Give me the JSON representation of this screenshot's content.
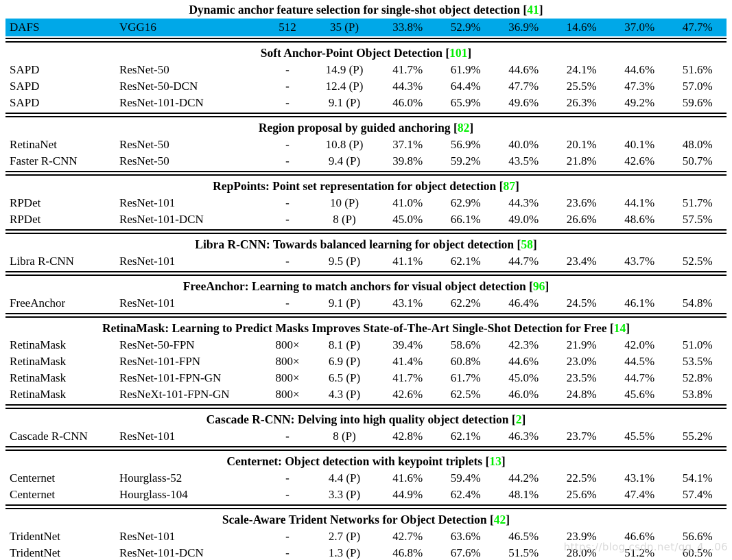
{
  "punct": {
    "open": "[",
    "close": "]"
  },
  "colors": {
    "highlight_row": "#00a8e8",
    "citation_green": "#00ee00",
    "text": "#000000",
    "background": "#ffffff"
  },
  "top_block": {
    "title": "Dynamic anchor feature selection for single-shot object detection",
    "citation": "41",
    "row": {
      "model": "DAFS",
      "backbone": "VGG16",
      "size": "512",
      "fps": "35 (P)",
      "m1": "33.8%",
      "m2": "52.9%",
      "m3": "36.9%",
      "m4": "14.6%",
      "m5": "37.0%",
      "m6": "47.7%"
    }
  },
  "sections": [
    {
      "title": "Soft Anchor-Point Object Detection",
      "citation": "101",
      "rows": [
        {
          "model": "SAPD",
          "backbone": "ResNet-50",
          "size": "-",
          "fps": "14.9 (P)",
          "m1": "41.7%",
          "m2": "61.9%",
          "m3": "44.6%",
          "m4": "24.1%",
          "m5": "44.6%",
          "m6": "51.6%"
        },
        {
          "model": "SAPD",
          "backbone": "ResNet-50-DCN",
          "size": "-",
          "fps": "12.4 (P)",
          "m1": "44.3%",
          "m2": "64.4%",
          "m3": "47.7%",
          "m4": "25.5%",
          "m5": "47.3%",
          "m6": "57.0%"
        },
        {
          "model": "SAPD",
          "backbone": "ResNet-101-DCN",
          "size": "-",
          "fps": "9.1 (P)",
          "m1": "46.0%",
          "m2": "65.9%",
          "m3": "49.6%",
          "m4": "26.3%",
          "m5": "49.2%",
          "m6": "59.6%"
        }
      ]
    },
    {
      "title": "Region proposal by guided anchoring",
      "citation": "82",
      "rows": [
        {
          "model": "RetinaNet",
          "backbone": "ResNet-50",
          "size": "-",
          "fps": "10.8 (P)",
          "m1": "37.1%",
          "m2": "56.9%",
          "m3": "40.0%",
          "m4": "20.1%",
          "m5": "40.1%",
          "m6": "48.0%"
        },
        {
          "model": "Faster R-CNN",
          "backbone": "ResNet-50",
          "size": "-",
          "fps": "9.4 (P)",
          "m1": "39.8%",
          "m2": "59.2%",
          "m3": "43.5%",
          "m4": "21.8%",
          "m5": "42.6%",
          "m6": "50.7%"
        }
      ]
    },
    {
      "title": "RepPoints: Point set representation for object detection",
      "citation": "87",
      "rows": [
        {
          "model": "RPDet",
          "backbone": "ResNet-101",
          "size": "-",
          "fps": "10 (P)",
          "m1": "41.0%",
          "m2": "62.9%",
          "m3": "44.3%",
          "m4": "23.6%",
          "m5": "44.1%",
          "m6": "51.7%"
        },
        {
          "model": "RPDet",
          "backbone": "ResNet-101-DCN",
          "size": "-",
          "fps": "8 (P)",
          "m1": "45.0%",
          "m2": "66.1%",
          "m3": "49.0%",
          "m4": "26.6%",
          "m5": "48.6%",
          "m6": "57.5%"
        }
      ]
    },
    {
      "title": "Libra R-CNN: Towards balanced learning for object detection",
      "citation": "58",
      "rows": [
        {
          "model": "Libra R-CNN",
          "backbone": "ResNet-101",
          "size": "-",
          "fps": "9.5 (P)",
          "m1": "41.1%",
          "m2": "62.1%",
          "m3": "44.7%",
          "m4": "23.4%",
          "m5": "43.7%",
          "m6": "52.5%"
        }
      ]
    },
    {
      "title": "FreeAnchor: Learning to match anchors for visual object detection",
      "citation": "96",
      "rows": [
        {
          "model": "FreeAnchor",
          "backbone": "ResNet-101",
          "size": "-",
          "fps": "9.1 (P)",
          "m1": "43.1%",
          "m2": "62.2%",
          "m3": "46.4%",
          "m4": "24.5%",
          "m5": "46.1%",
          "m6": "54.8%"
        }
      ]
    },
    {
      "title": "RetinaMask: Learning to Predict Masks Improves State-of-The-Art Single-Shot Detection for Free",
      "citation": "14",
      "rows": [
        {
          "model": "RetinaMask",
          "backbone": "ResNet-50-FPN",
          "size": "800×",
          "fps": "8.1 (P)",
          "m1": "39.4%",
          "m2": "58.6%",
          "m3": "42.3%",
          "m4": "21.9%",
          "m5": "42.0%",
          "m6": "51.0%"
        },
        {
          "model": "RetinaMask",
          "backbone": "ResNet-101-FPN",
          "size": "800×",
          "fps": "6.9 (P)",
          "m1": "41.4%",
          "m2": "60.8%",
          "m3": "44.6%",
          "m4": "23.0%",
          "m5": "44.5%",
          "m6": "53.5%"
        },
        {
          "model": "RetinaMask",
          "backbone": "ResNet-101-FPN-GN",
          "size": "800×",
          "fps": "6.5 (P)",
          "m1": "41.7%",
          "m2": "61.7%",
          "m3": "45.0%",
          "m4": "23.5%",
          "m5": "44.7%",
          "m6": "52.8%"
        },
        {
          "model": "RetinaMask",
          "backbone": "ResNeXt-101-FPN-GN",
          "size": "800×",
          "fps": "4.3 (P)",
          "m1": "42.6%",
          "m2": "62.5%",
          "m3": "46.0%",
          "m4": "24.8%",
          "m5": "45.6%",
          "m6": "53.8%"
        }
      ]
    },
    {
      "title": "Cascade R-CNN: Delving into high quality object detection",
      "citation": "2",
      "rows": [
        {
          "model": "Cascade R-CNN",
          "backbone": "ResNet-101",
          "size": "-",
          "fps": "8 (P)",
          "m1": "42.8%",
          "m2": "62.1%",
          "m3": "46.3%",
          "m4": "23.7%",
          "m5": "45.5%",
          "m6": "55.2%"
        }
      ]
    },
    {
      "title": "Centernet: Object detection with keypoint triplets",
      "citation": "13",
      "rows": [
        {
          "model": "Centernet",
          "backbone": "Hourglass-52",
          "size": "-",
          "fps": "4.4 (P)",
          "m1": "41.6%",
          "m2": "59.4%",
          "m3": "44.2%",
          "m4": "22.5%",
          "m5": "43.1%",
          "m6": "54.1%"
        },
        {
          "model": "Centernet",
          "backbone": "Hourglass-104",
          "size": "-",
          "fps": "3.3 (P)",
          "m1": "44.9%",
          "m2": "62.4%",
          "m3": "48.1%",
          "m4": "25.6%",
          "m5": "47.4%",
          "m6": "57.4%"
        }
      ]
    },
    {
      "title": "Scale-Aware Trident Networks for Object Detection",
      "citation": "42",
      "rows": [
        {
          "model": "TridentNet",
          "backbone": "ResNet-101",
          "size": "-",
          "fps": "2.7 (P)",
          "m1": "42.7%",
          "m2": "63.6%",
          "m3": "46.5%",
          "m4": "23.9%",
          "m5": "46.6%",
          "m6": "56.6%"
        },
        {
          "model": "TridentNet",
          "backbone": "ResNet-101-DCN",
          "size": "-",
          "fps": "1.3 (P)",
          "m1": "46.8%",
          "m2": "67.6%",
          "m3": "51.5%",
          "m4": "28.0%",
          "m5": "51.2%",
          "m6": "60.5%"
        }
      ]
    }
  ],
  "watermark": "https://blog.csdn.net/qq_4…06"
}
